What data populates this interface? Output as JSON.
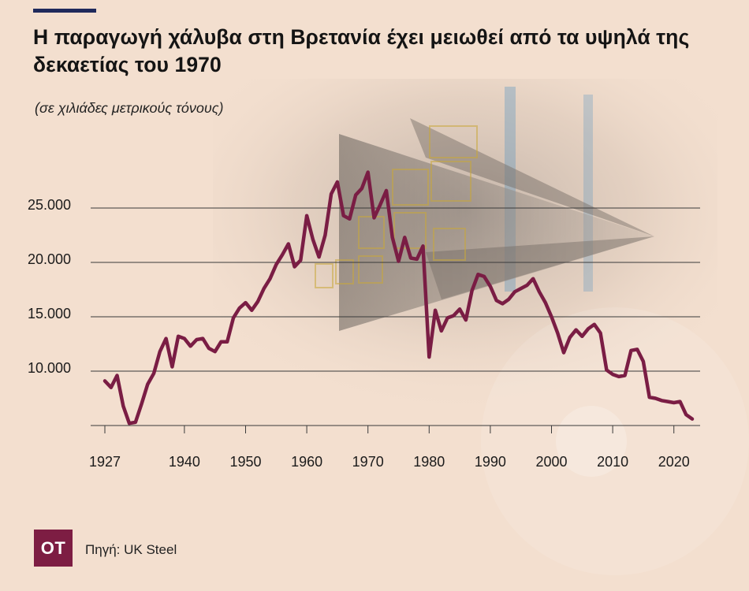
{
  "header": {
    "title": "Η παραγωγή χάλυβα στη Βρετανία έχει μειωθεί από τα υψηλά της δεκαετίας του 1970",
    "subtitle": "(σε χιλιάδες μετρικούς τόνους)"
  },
  "footer": {
    "logo_text": "ΟΤ",
    "source": "Πηγή: UK Steel"
  },
  "colors": {
    "background": "#f3dfcf",
    "line": "#7a1d44",
    "accent_rule": "#1f2a5c",
    "logo_bg": "#7d1d43"
  },
  "chart_data": {
    "type": "line",
    "title": "Η παραγωγή χάλυβα στη Βρετανία έχει μειωθεί από τα υψηλά της δεκαετίας του 1970",
    "subtitle": "(σε χιλιάδες μετρικούς τόνους)",
    "xlabel": "",
    "ylabel": "",
    "xlim": [
      1927,
      2023
    ],
    "ylim": [
      5000,
      25000
    ],
    "x_ticks": [
      1927,
      1940,
      1950,
      1960,
      1970,
      1980,
      1990,
      2000,
      2010,
      2020
    ],
    "y_ticks": [
      {
        "value": 10000,
        "label": "10.000"
      },
      {
        "value": 15000,
        "label": "15.000"
      },
      {
        "value": 20000,
        "label": "20.000"
      },
      {
        "value": 25000,
        "label": "25.000"
      }
    ],
    "grid": "horizontal",
    "series": [
      {
        "x": [
          1927,
          1928,
          1929,
          1930,
          1931,
          1932,
          1933,
          1934,
          1935,
          1936,
          1937,
          1938,
          1939,
          1940,
          1941,
          1942,
          1943,
          1944,
          1945,
          1946,
          1947,
          1948,
          1949,
          1950,
          1951,
          1952,
          1953,
          1954,
          1955,
          1956,
          1957,
          1958,
          1959,
          1960,
          1961,
          1962,
          1963,
          1964,
          1965,
          1966,
          1967,
          1968,
          1969,
          1970,
          1971,
          1972,
          1973,
          1974,
          1975,
          1976,
          1977,
          1978,
          1979,
          1980,
          1981,
          1982,
          1983,
          1984,
          1985,
          1986,
          1987,
          1988,
          1989,
          1990,
          1991,
          1992,
          1993,
          1994,
          1995,
          1996,
          1997,
          1998,
          1999,
          2000,
          2001,
          2002,
          2003,
          2004,
          2005,
          2006,
          2007,
          2008,
          2009,
          2010,
          2011,
          2012,
          2013,
          2014,
          2015,
          2016,
          2017,
          2018,
          2019,
          2020,
          2021,
          2022,
          2023
        ],
        "values": [
          9100,
          8500,
          9600,
          6800,
          5200,
          5300,
          7000,
          8800,
          9800,
          11800,
          13000,
          10400,
          13200,
          13000,
          12300,
          12900,
          13000,
          12100,
          11800,
          12700,
          12700,
          14900,
          15800,
          16300,
          15600,
          16400,
          17600,
          18500,
          19800,
          20700,
          21700,
          19600,
          20200,
          24300,
          22100,
          20500,
          22500,
          26300,
          27400,
          24300,
          24000,
          26200,
          26800,
          28300,
          24100,
          25300,
          26600,
          22300,
          20100,
          22300,
          20400,
          20300,
          21500,
          11300,
          15600,
          13700,
          14900,
          15100,
          15700,
          14700,
          17400,
          18900,
          18700,
          17800,
          16500,
          16200,
          16600,
          17300,
          17600,
          17900,
          18500,
          17300,
          16300,
          15000,
          13500,
          11700,
          13100,
          13800,
          13200,
          13900,
          14300,
          13500,
          10100,
          9700,
          9500,
          9600,
          11900,
          12000,
          10900,
          7600,
          7500,
          7300,
          7200,
          7100,
          7200,
          6000,
          5600
        ]
      }
    ]
  }
}
